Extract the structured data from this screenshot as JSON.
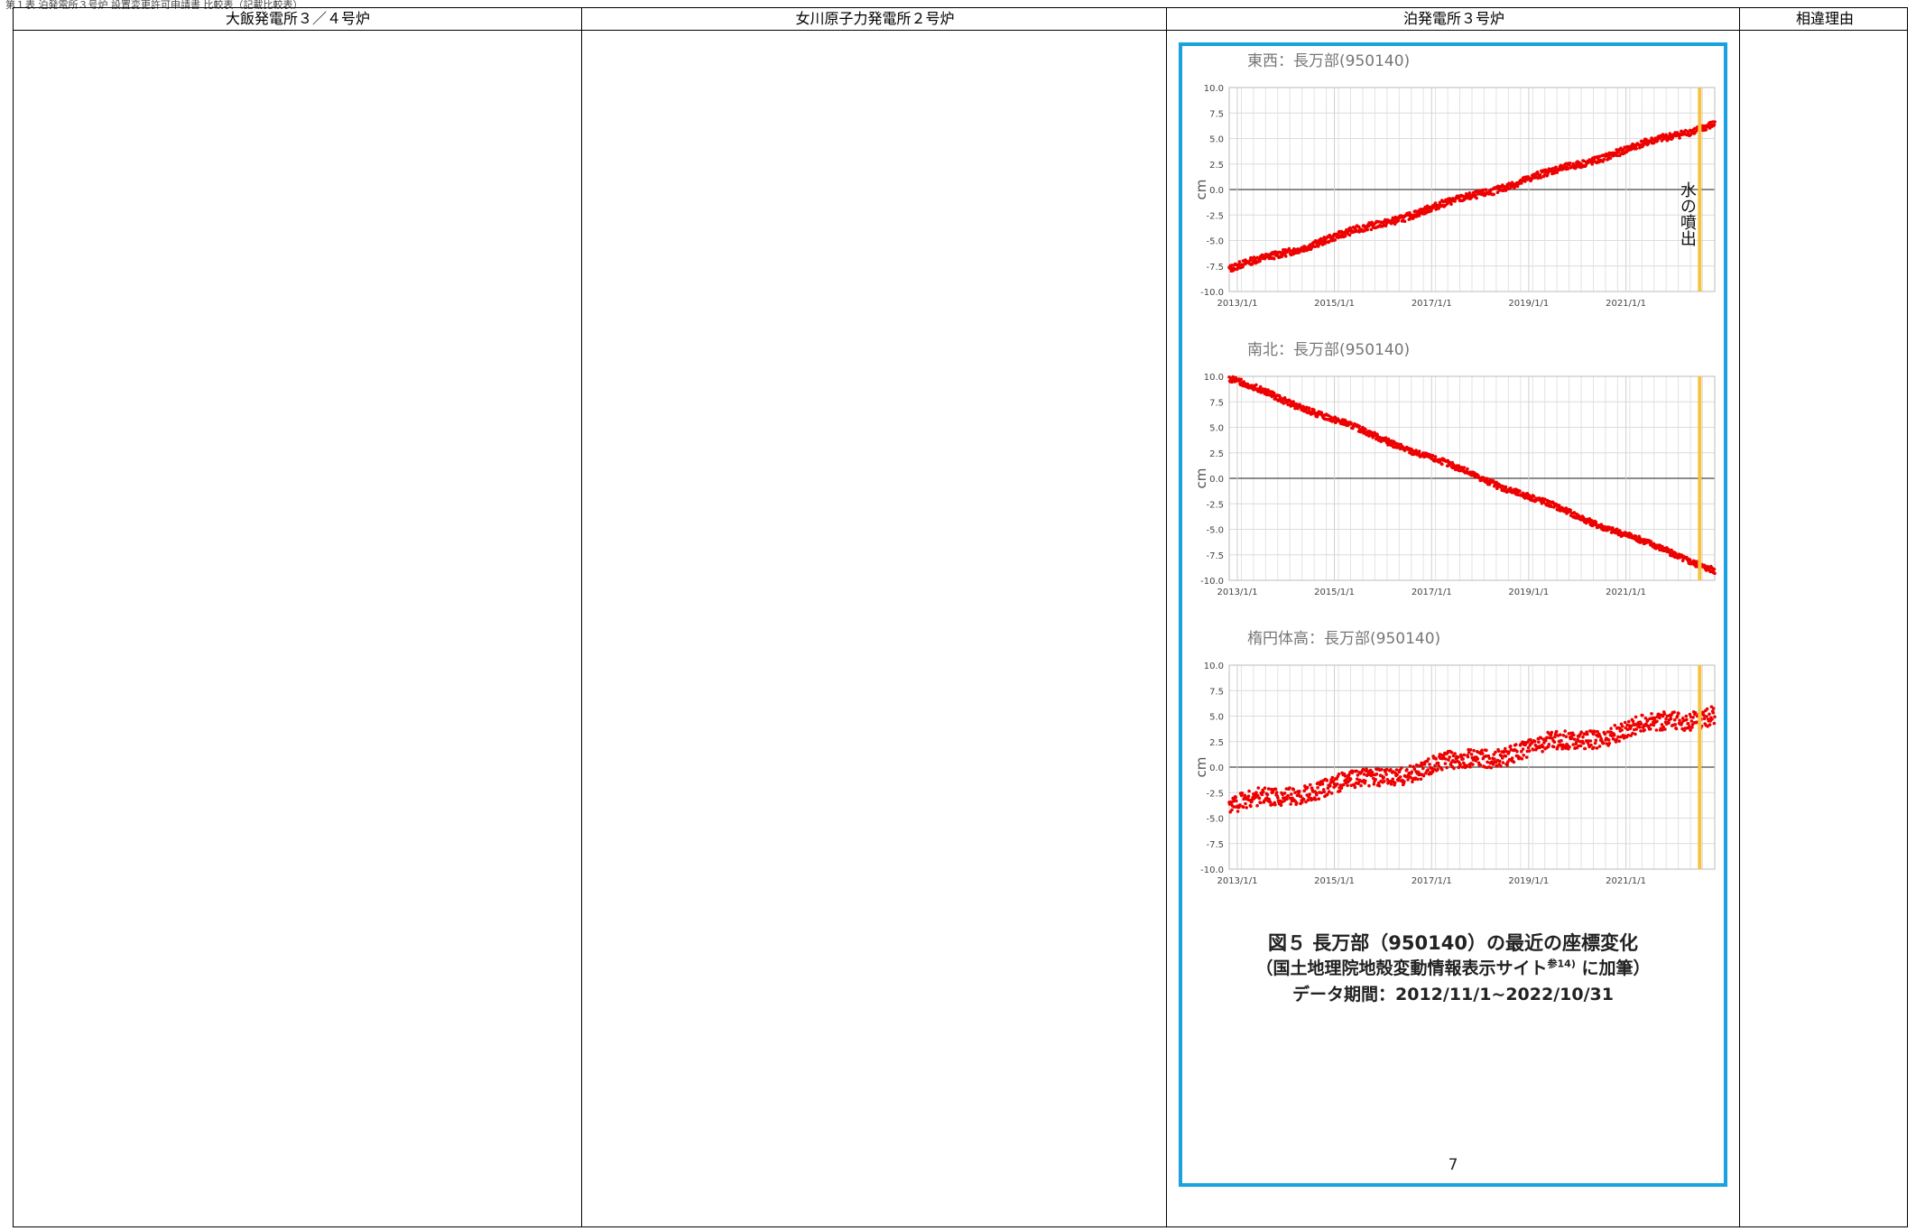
{
  "header_caption": "第１表 泊発電所３号炉 設置変更許可申請書 比較表（記載比較表）",
  "table": {
    "columns": [
      "大飯発電所３／４号炉",
      "女川原子力発電所２号炉",
      "泊発電所３号炉",
      "相違理由"
    ]
  },
  "figure": {
    "caption_line1": "図５ 長万部（950140）の最近の座標変化",
    "caption_line2_prefix": "（国土地理院地殻変動情報表示サイト",
    "caption_line2_sup": "参14)",
    "caption_line2_suffix": "に加筆）",
    "caption_line3": "データ期間：2012/11/1~2022/10/31",
    "page_number": "7",
    "accent_color": "#1aa1e0"
  },
  "chart_data": [
    {
      "type": "scatter",
      "title": "東西：長万部(950140)",
      "ylabel": "cm",
      "ylim": [
        -10,
        10
      ],
      "yticks": [
        "10.0",
        "7.5",
        "5.0",
        "2.5",
        "0.0",
        "-2.5",
        "-5.0",
        "-7.5",
        "-10.0"
      ],
      "xticks": [
        "2013/1/1",
        "2015/1/1",
        "2017/1/1",
        "2019/1/1",
        "2021/1/1"
      ],
      "xlim": [
        "2012-11-01",
        "2022-10-31"
      ],
      "marker_date": "2022-07-10",
      "marker_label": "水の噴出",
      "series": [
        {
          "start": -7.8,
          "end": 6.5,
          "noise": 0.35,
          "color": "#ee0000"
        }
      ]
    },
    {
      "type": "scatter",
      "title": "南北：長万部(950140)",
      "ylabel": "cm",
      "ylim": [
        -10,
        10
      ],
      "yticks": [
        "10.0",
        "7.5",
        "5.0",
        "2.5",
        "0.0",
        "-2.5",
        "-5.0",
        "-7.5",
        "-10.0"
      ],
      "xticks": [
        "2013/1/1",
        "2015/1/1",
        "2017/1/1",
        "2019/1/1",
        "2021/1/1"
      ],
      "xlim": [
        "2012-11-01",
        "2022-10-31"
      ],
      "marker_date": "2022-07-10",
      "series": [
        {
          "start": 9.8,
          "end": -9.0,
          "noise": 0.3,
          "color": "#ee0000"
        }
      ]
    },
    {
      "type": "scatter",
      "title": "楕円体高：長万部(950140)",
      "ylabel": "cm",
      "ylim": [
        -10,
        10
      ],
      "yticks": [
        "10.0",
        "7.5",
        "5.0",
        "2.5",
        "0.0",
        "-2.5",
        "-5.0",
        "-7.5",
        "-10.0"
      ],
      "xticks": [
        "2013/1/1",
        "2015/1/1",
        "2017/1/1",
        "2019/1/1",
        "2021/1/1"
      ],
      "xlim": [
        "2012-11-01",
        "2022-10-31"
      ],
      "marker_date": "2022-07-10",
      "series": [
        {
          "start": -3.8,
          "end": 5.3,
          "noise": 0.9,
          "color": "#ee0000"
        }
      ]
    }
  ]
}
